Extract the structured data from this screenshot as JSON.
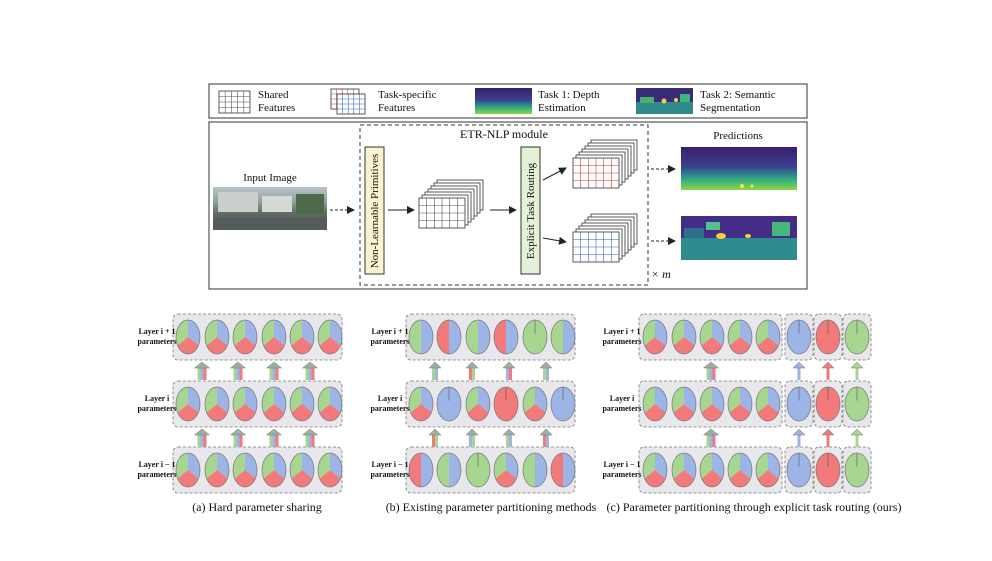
{
  "legend": {
    "shared": [
      "Shared",
      "Features"
    ],
    "task_specific": [
      "Task-specific",
      "Features"
    ],
    "task1": [
      "Task 1: Depth",
      "Estimation"
    ],
    "task2": [
      "Task 2:  Semantic",
      "Segmentation"
    ]
  },
  "pipeline": {
    "input_label": "Input Image",
    "module_title": "ETR-NLP module",
    "nlp_label": "Non-Learnable Primitives",
    "etr_label": "Explicit Task Routing",
    "predictions_label": "Predictions",
    "repeat_label": "× m"
  },
  "panels": {
    "layer_upper": "Layer i + 1",
    "layer_mid": "Layer i",
    "layer_lower": "Layer i − 1",
    "params": "parameters",
    "a_caption": "(a) Hard parameter sharing",
    "b_caption": "(b) Existing parameter partitioning methods",
    "c_caption": "(c) Parameter partitioning through explicit task routing (ours)"
  },
  "colors": {
    "green": "#a6d68f",
    "blue": "#9db4e6",
    "red": "#f27a7a",
    "nlp_fill": "#fbf3cf",
    "etr_fill": "#e3f1d6"
  }
}
